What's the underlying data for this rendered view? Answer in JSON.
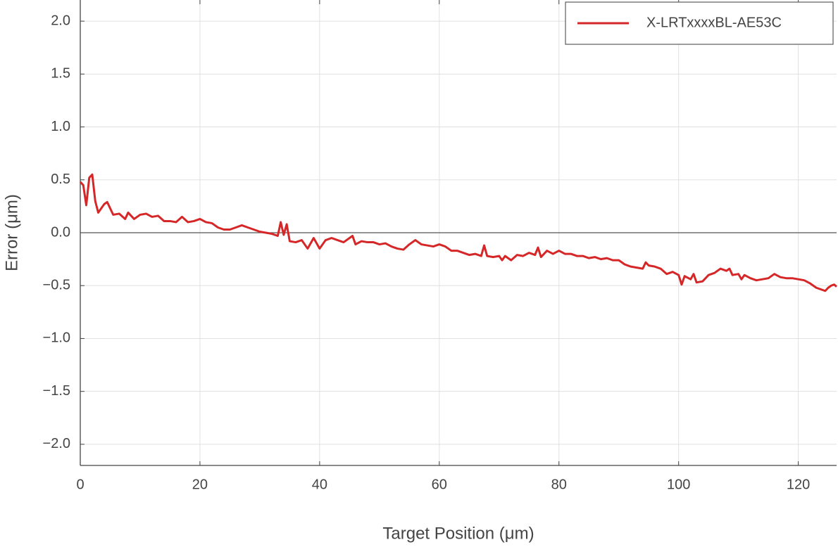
{
  "chart_data": {
    "type": "line",
    "x_label": "Target Position (μm)",
    "y_label": "Error (μm)",
    "x": [
      0,
      0.5,
      1,
      1.5,
      2,
      2.5,
      3,
      4,
      4.5,
      5.5,
      6.5,
      7.5,
      8,
      9,
      10,
      11,
      12,
      13,
      14,
      15,
      16,
      17,
      18,
      19,
      20,
      21,
      22,
      23,
      24,
      25,
      26,
      27,
      28,
      29,
      30,
      31,
      32,
      33,
      33.5,
      34,
      34.5,
      35,
      36,
      37,
      38,
      39,
      40,
      41,
      42,
      43,
      44,
      45,
      45.5,
      46,
      47,
      48,
      49,
      50,
      51,
      52,
      53,
      54,
      55,
      56,
      57,
      58,
      59,
      60,
      61,
      62,
      63,
      64,
      65,
      66,
      67,
      67.5,
      68,
      69,
      70,
      70.5,
      71,
      72,
      73,
      74,
      75,
      76,
      76.5,
      77,
      78,
      79,
      80,
      81,
      82,
      83,
      84,
      85,
      86,
      87,
      88,
      89,
      90,
      91,
      92,
      93,
      94,
      94.5,
      95,
      96,
      97,
      98,
      99,
      100,
      100.5,
      101,
      102,
      102.5,
      103,
      104,
      105,
      106,
      107,
      108,
      108.5,
      109,
      110,
      110.5,
      111,
      112,
      113,
      114,
      115,
      116,
      117,
      118,
      119,
      120,
      121,
      122,
      123,
      124,
      124.5,
      125,
      125.5,
      126,
      126.4
    ],
    "series": [
      {
        "name": "X-LRTxxxxBL-AE53C",
        "color": "#d62728",
        "values": [
          0.48,
          0.45,
          0.26,
          0.52,
          0.55,
          0.3,
          0.19,
          0.27,
          0.29,
          0.17,
          0.18,
          0.13,
          0.19,
          0.13,
          0.17,
          0.18,
          0.15,
          0.16,
          0.11,
          0.11,
          0.1,
          0.15,
          0.1,
          0.11,
          0.13,
          0.1,
          0.09,
          0.05,
          0.03,
          0.03,
          0.05,
          0.07,
          0.05,
          0.03,
          0.01,
          0.0,
          -0.01,
          -0.03,
          0.1,
          -0.02,
          0.08,
          -0.08,
          -0.09,
          -0.07,
          -0.15,
          -0.05,
          -0.15,
          -0.07,
          -0.05,
          -0.07,
          -0.09,
          -0.05,
          -0.03,
          -0.11,
          -0.08,
          -0.09,
          -0.09,
          -0.11,
          -0.1,
          -0.13,
          -0.15,
          -0.16,
          -0.11,
          -0.07,
          -0.11,
          -0.12,
          -0.13,
          -0.11,
          -0.13,
          -0.17,
          -0.17,
          -0.19,
          -0.21,
          -0.2,
          -0.22,
          -0.12,
          -0.22,
          -0.23,
          -0.22,
          -0.26,
          -0.22,
          -0.26,
          -0.21,
          -0.22,
          -0.19,
          -0.21,
          -0.14,
          -0.23,
          -0.17,
          -0.2,
          -0.17,
          -0.2,
          -0.2,
          -0.22,
          -0.22,
          -0.24,
          -0.23,
          -0.25,
          -0.24,
          -0.26,
          -0.26,
          -0.3,
          -0.32,
          -0.33,
          -0.34,
          -0.28,
          -0.31,
          -0.32,
          -0.34,
          -0.39,
          -0.37,
          -0.4,
          -0.49,
          -0.41,
          -0.44,
          -0.39,
          -0.47,
          -0.46,
          -0.4,
          -0.38,
          -0.34,
          -0.36,
          -0.34,
          -0.4,
          -0.39,
          -0.44,
          -0.4,
          -0.43,
          -0.45,
          -0.44,
          -0.43,
          -0.39,
          -0.42,
          -0.43,
          -0.43,
          -0.44,
          -0.45,
          -0.48,
          -0.52,
          -0.54,
          -0.55,
          -0.52,
          -0.5,
          -0.49,
          -0.51
        ]
      }
    ],
    "xlim": [
      0,
      126.4
    ],
    "ylim": [
      -2.2,
      2.2
    ],
    "xticks": [
      0,
      20,
      40,
      60,
      80,
      100,
      120
    ],
    "yticks": [
      {
        "value": -2.0,
        "label": "−2.0"
      },
      {
        "value": -1.5,
        "label": "−1.5"
      },
      {
        "value": -1.0,
        "label": "−1.0"
      },
      {
        "value": -0.5,
        "label": "−0.5"
      },
      {
        "value": 0,
        "label": "0.0"
      },
      {
        "value": 0.5,
        "label": "0.5"
      },
      {
        "value": 1.0,
        "label": "1.0"
      },
      {
        "value": 1.5,
        "label": "1.5"
      },
      {
        "value": 2.0,
        "label": "2.0"
      }
    ],
    "grid": true,
    "legend": "upper right"
  }
}
